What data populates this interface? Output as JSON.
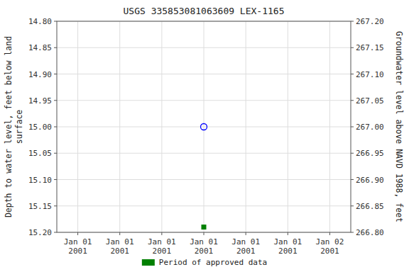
{
  "chart_data": {
    "type": "scatter",
    "title": "USGS 335853081063609 LEX-1165",
    "y_label": "Depth to water level, feet below land\nsurface",
    "y2_label": "Groundwater level above NAVD 1988, feet",
    "categories": [
      "Jan 01\n2001",
      "Jan 01\n2001",
      "Jan 01\n2001",
      "Jan 01\n2001",
      "Jan 01\n2001",
      "Jan 01\n2001",
      "Jan 02\n2001"
    ],
    "series": [
      {
        "color": "blue",
        "marker": "open-circle",
        "values": [
          null,
          null,
          null,
          15.0,
          null,
          null,
          null
        ]
      },
      {
        "name": "Period of approved data",
        "color": "green",
        "marker": "square",
        "values": [
          null,
          null,
          null,
          15.19,
          null,
          null,
          null
        ]
      }
    ],
    "ylim": [
      15.2,
      14.8
    ],
    "yticks": [
      {
        "value": 14.8,
        "label": "14.80"
      },
      {
        "value": 14.85,
        "label": "14.85"
      },
      {
        "value": 14.9,
        "label": "14.90"
      },
      {
        "value": 14.95,
        "label": "14.95"
      },
      {
        "value": 15.0,
        "label": "15.00"
      },
      {
        "value": 15.05,
        "label": "15.05"
      },
      {
        "value": 15.1,
        "label": "15.10"
      },
      {
        "value": 15.15,
        "label": "15.15"
      },
      {
        "value": 15.2,
        "label": "15.20"
      }
    ],
    "y2lim": [
      266.8,
      267.2
    ],
    "y2ticks": [
      {
        "value": 267.2,
        "label": "267.20"
      },
      {
        "value": 267.15,
        "label": "267.15"
      },
      {
        "value": 267.1,
        "label": "267.10"
      },
      {
        "value": 267.05,
        "label": "267.05"
      },
      {
        "value": 267.0,
        "label": "267.00"
      },
      {
        "value": 266.95,
        "label": "266.95"
      },
      {
        "value": 266.9,
        "label": "266.90"
      },
      {
        "value": 266.85,
        "label": "266.85"
      },
      {
        "value": 266.8,
        "label": "266.80"
      }
    ],
    "grid": true,
    "legend": "bottom"
  }
}
